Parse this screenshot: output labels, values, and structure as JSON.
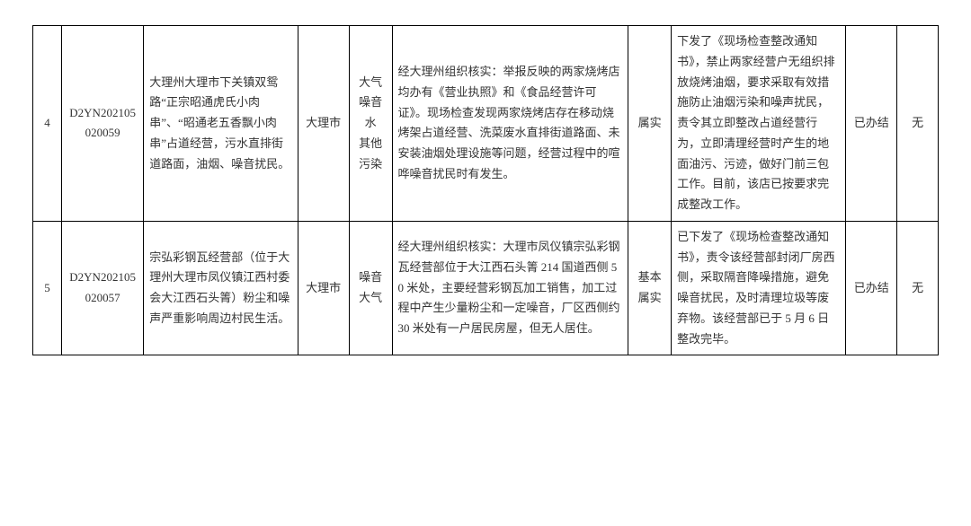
{
  "table": {
    "font_family": "SimSun",
    "font_size_pt": 10,
    "border_color": "#000000",
    "text_color": "#333333",
    "background_color": "#ffffff",
    "columns": [
      {
        "key": "idx",
        "align": "center"
      },
      {
        "key": "code",
        "align": "center"
      },
      {
        "key": "complaint",
        "align": "left"
      },
      {
        "key": "city",
        "align": "center"
      },
      {
        "key": "pollution",
        "align": "center"
      },
      {
        "key": "investigation",
        "align": "left"
      },
      {
        "key": "verified",
        "align": "center"
      },
      {
        "key": "action",
        "align": "left"
      },
      {
        "key": "status",
        "align": "center"
      },
      {
        "key": "responsibility",
        "align": "center"
      }
    ],
    "rows": [
      {
        "idx": "4",
        "code": "D2YN202105020059",
        "complaint": "大理州大理市下关镇双鸳路“正宗昭通虎氏小肉串”、“昭通老五香飘小肉串”占道经营，污水直排街道路面，油烟、噪音扰民。",
        "city": "大理市",
        "pollution": "大气\n噪音\n水\n其他污染",
        "investigation": "经大理州组织核实：举报反映的两家烧烤店均办有《营业执照》和《食品经营许可证》。现场检查发现两家烧烤店存在移动烧烤架占道经营、洗菜废水直排街道路面、未安装油烟处理设施等问题，经营过程中的喧哗噪音扰民时有发生。",
        "verified": "属实",
        "action": "下发了《现场检查整改通知书》，禁止两家经营户无组织排放烧烤油烟，要求采取有效措施防止油烟污染和噪声扰民，责令其立即整改占道经营行为，立即清理经营时产生的地面油污、污迹，做好门前三包工作。目前，该店已按要求完成整改工作。",
        "status": "已办结",
        "responsibility": "无"
      },
      {
        "idx": "5",
        "code": "D2YN202105020057",
        "complaint": "宗弘彩钢瓦经营部（位于大理州大理市凤仪镇江西村委会大江西石头箐）粉尘和噪声严重影响周边村民生活。",
        "city": "大理市",
        "pollution": "噪音\n大气",
        "investigation": "经大理州组织核实：大理市凤仪镇宗弘彩钢瓦经营部位于大江西石头箐 214 国道西侧 50 米处，主要经营彩钢瓦加工销售，加工过程中产生少量粉尘和一定噪音，厂区西侧约 30 米处有一户居民房屋，但无人居住。",
        "verified": "基本属实",
        "action": "已下发了《现场检查整改通知书》，责令该经营部封闭厂房西侧，采取隔音降噪措施，避免噪音扰民，及时清理垃圾等废弃物。该经营部已于 5 月 6 日整改完毕。",
        "status": "已办结",
        "responsibility": "无"
      }
    ]
  }
}
